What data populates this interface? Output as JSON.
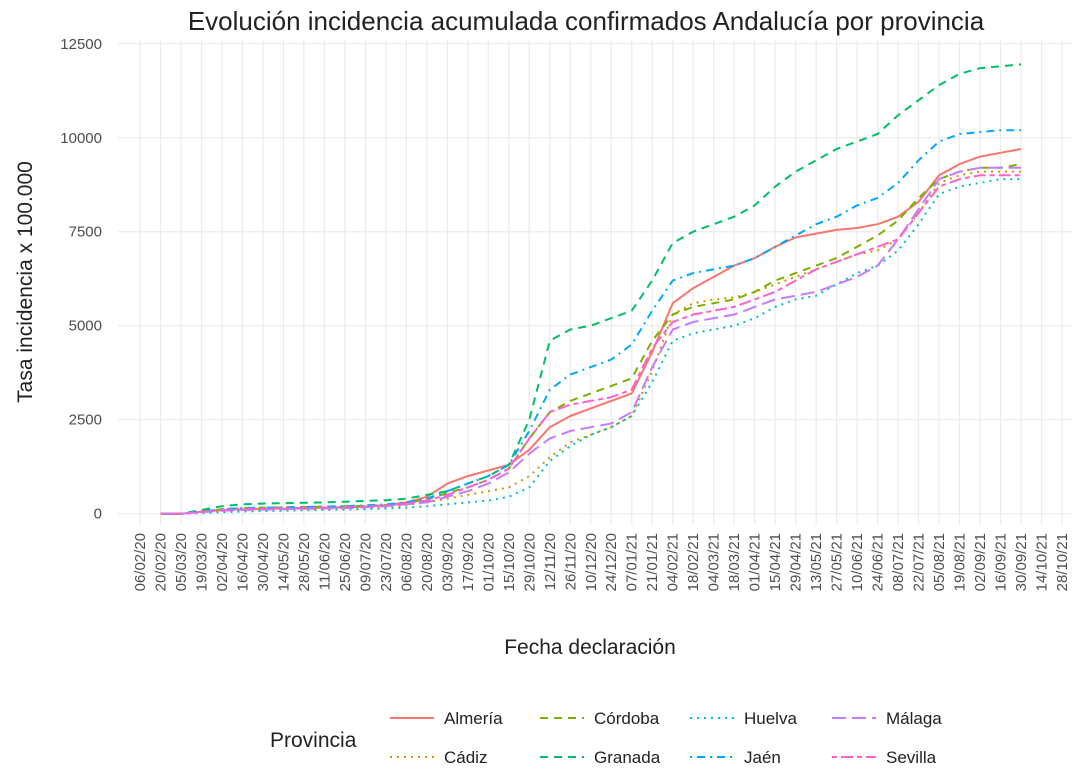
{
  "chart_data": {
    "type": "line",
    "title": "Evolución incidencia acumulada confirmados Andalucía por provincia",
    "x_label": "Fecha declaración",
    "y_label": "Tasa incidencia x 100.000",
    "legend_title": "Provincia",
    "legend": "bottom",
    "grid": true,
    "x": [
      "06/02/20",
      "20/02/20",
      "05/03/20",
      "19/03/20",
      "02/04/20",
      "16/04/20",
      "30/04/20",
      "14/05/20",
      "28/05/20",
      "11/06/20",
      "25/06/20",
      "09/07/20",
      "23/07/20",
      "06/08/20",
      "20/08/20",
      "03/09/20",
      "17/09/20",
      "01/10/20",
      "15/10/20",
      "29/10/20",
      "12/11/20",
      "26/11/20",
      "10/12/20",
      "24/12/20",
      "07/01/21",
      "21/01/21",
      "04/02/21",
      "18/02/21",
      "04/03/21",
      "18/03/21",
      "01/04/21",
      "15/04/21",
      "29/04/21",
      "13/05/21",
      "27/05/21",
      "10/06/21",
      "24/06/21",
      "08/07/21",
      "22/07/21",
      "05/08/21",
      "19/08/21",
      "02/09/21",
      "16/09/21",
      "30/09/21",
      "14/10/21",
      "28/10/21"
    ],
    "ylim": [
      -300,
      12600
    ],
    "yticks": [
      0,
      2500,
      5000,
      7500,
      10000,
      12500
    ],
    "series": [
      {
        "name": "Almería",
        "color": "#F8766D",
        "dash": "solid",
        "values": [
          null,
          0,
          0,
          50,
          100,
          120,
          130,
          140,
          150,
          160,
          170,
          190,
          230,
          300,
          450,
          800,
          1000,
          1150,
          1300,
          1700,
          2300,
          2600,
          2800,
          3000,
          3200,
          4300,
          5600,
          6000,
          6300,
          6600,
          6800,
          7100,
          7350,
          7450,
          7550,
          7600,
          7700,
          7900,
          8300,
          9000,
          9300,
          9500,
          9600,
          9700,
          null,
          null
        ]
      },
      {
        "name": "Cádiz",
        "color": "#CD9600",
        "dash": "dotted",
        "values": [
          null,
          0,
          0,
          30,
          60,
          80,
          90,
          100,
          110,
          120,
          130,
          150,
          180,
          230,
          300,
          400,
          500,
          600,
          700,
          1000,
          1500,
          1900,
          2100,
          2300,
          2600,
          3800,
          5300,
          5600,
          5700,
          5750,
          5900,
          6100,
          6300,
          6500,
          6700,
          6900,
          7000,
          7300,
          8000,
          8800,
          9000,
          9100,
          9100,
          9100,
          null,
          null
        ]
      },
      {
        "name": "Córdoba",
        "color": "#7CAE00",
        "dash": "dashed",
        "values": [
          null,
          0,
          0,
          60,
          120,
          150,
          160,
          170,
          180,
          190,
          200,
          210,
          230,
          280,
          380,
          550,
          700,
          900,
          1200,
          2000,
          2700,
          3000,
          3200,
          3400,
          3600,
          4600,
          5300,
          5500,
          5600,
          5700,
          5900,
          6200,
          6400,
          6600,
          6800,
          7100,
          7400,
          7800,
          8400,
          8900,
          9100,
          9200,
          9200,
          9300,
          null,
          null
        ]
      },
      {
        "name": "Granada",
        "color": "#00BE67",
        "dash": "dashed",
        "values": [
          null,
          0,
          0,
          100,
          200,
          250,
          270,
          280,
          290,
          300,
          320,
          340,
          360,
          400,
          500,
          600,
          800,
          1000,
          1300,
          2500,
          4600,
          4900,
          5000,
          5200,
          5400,
          6200,
          7200,
          7500,
          7700,
          7900,
          8200,
          8700,
          9100,
          9400,
          9700,
          9900,
          10100,
          10600,
          11000,
          11400,
          11700,
          11850,
          11900,
          11950,
          null,
          null
        ]
      },
      {
        "name": "Huelva",
        "color": "#00BFC4",
        "dash": "dotted",
        "values": [
          null,
          0,
          0,
          20,
          40,
          60,
          70,
          80,
          90,
          100,
          110,
          120,
          140,
          160,
          200,
          250,
          300,
          350,
          450,
          700,
          1400,
          1800,
          2100,
          2300,
          2600,
          3500,
          4600,
          4800,
          4900,
          5000,
          5200,
          5500,
          5700,
          5800,
          6100,
          6400,
          6600,
          7000,
          7700,
          8500,
          8700,
          8800,
          8900,
          8900,
          null,
          null
        ]
      },
      {
        "name": "Jaén",
        "color": "#00A9FF",
        "dash": "dotdash",
        "values": [
          null,
          0,
          0,
          60,
          120,
          150,
          160,
          170,
          180,
          190,
          200,
          220,
          250,
          300,
          400,
          600,
          800,
          1000,
          1300,
          2200,
          3300,
          3700,
          3900,
          4100,
          4500,
          5400,
          6200,
          6400,
          6500,
          6600,
          6800,
          7100,
          7400,
          7700,
          7900,
          8200,
          8400,
          8800,
          9400,
          9900,
          10100,
          10150,
          10200,
          10200,
          null,
          null
        ]
      },
      {
        "name": "Málaga",
        "color": "#C77CFF",
        "dash": "longdash",
        "values": [
          null,
          0,
          0,
          40,
          80,
          100,
          110,
          120,
          130,
          140,
          150,
          170,
          200,
          250,
          300,
          450,
          600,
          800,
          1100,
          1600,
          2000,
          2200,
          2300,
          2400,
          2700,
          3900,
          4900,
          5100,
          5200,
          5300,
          5500,
          5700,
          5800,
          5900,
          6100,
          6300,
          6600,
          7300,
          8100,
          8900,
          9100,
          9200,
          9200,
          9200,
          null,
          null
        ]
      },
      {
        "name": "Sevilla",
        "color": "#FF61CC",
        "dash": "twodash",
        "values": [
          null,
          0,
          0,
          50,
          100,
          120,
          130,
          140,
          150,
          160,
          170,
          190,
          220,
          270,
          350,
          500,
          700,
          900,
          1200,
          2000,
          2700,
          2900,
          3000,
          3100,
          3300,
          4400,
          5100,
          5300,
          5400,
          5500,
          5700,
          5900,
          6200,
          6500,
          6700,
          6900,
          7100,
          7300,
          8000,
          8700,
          8900,
          9000,
          9000,
          9000,
          null,
          null
        ]
      }
    ]
  }
}
